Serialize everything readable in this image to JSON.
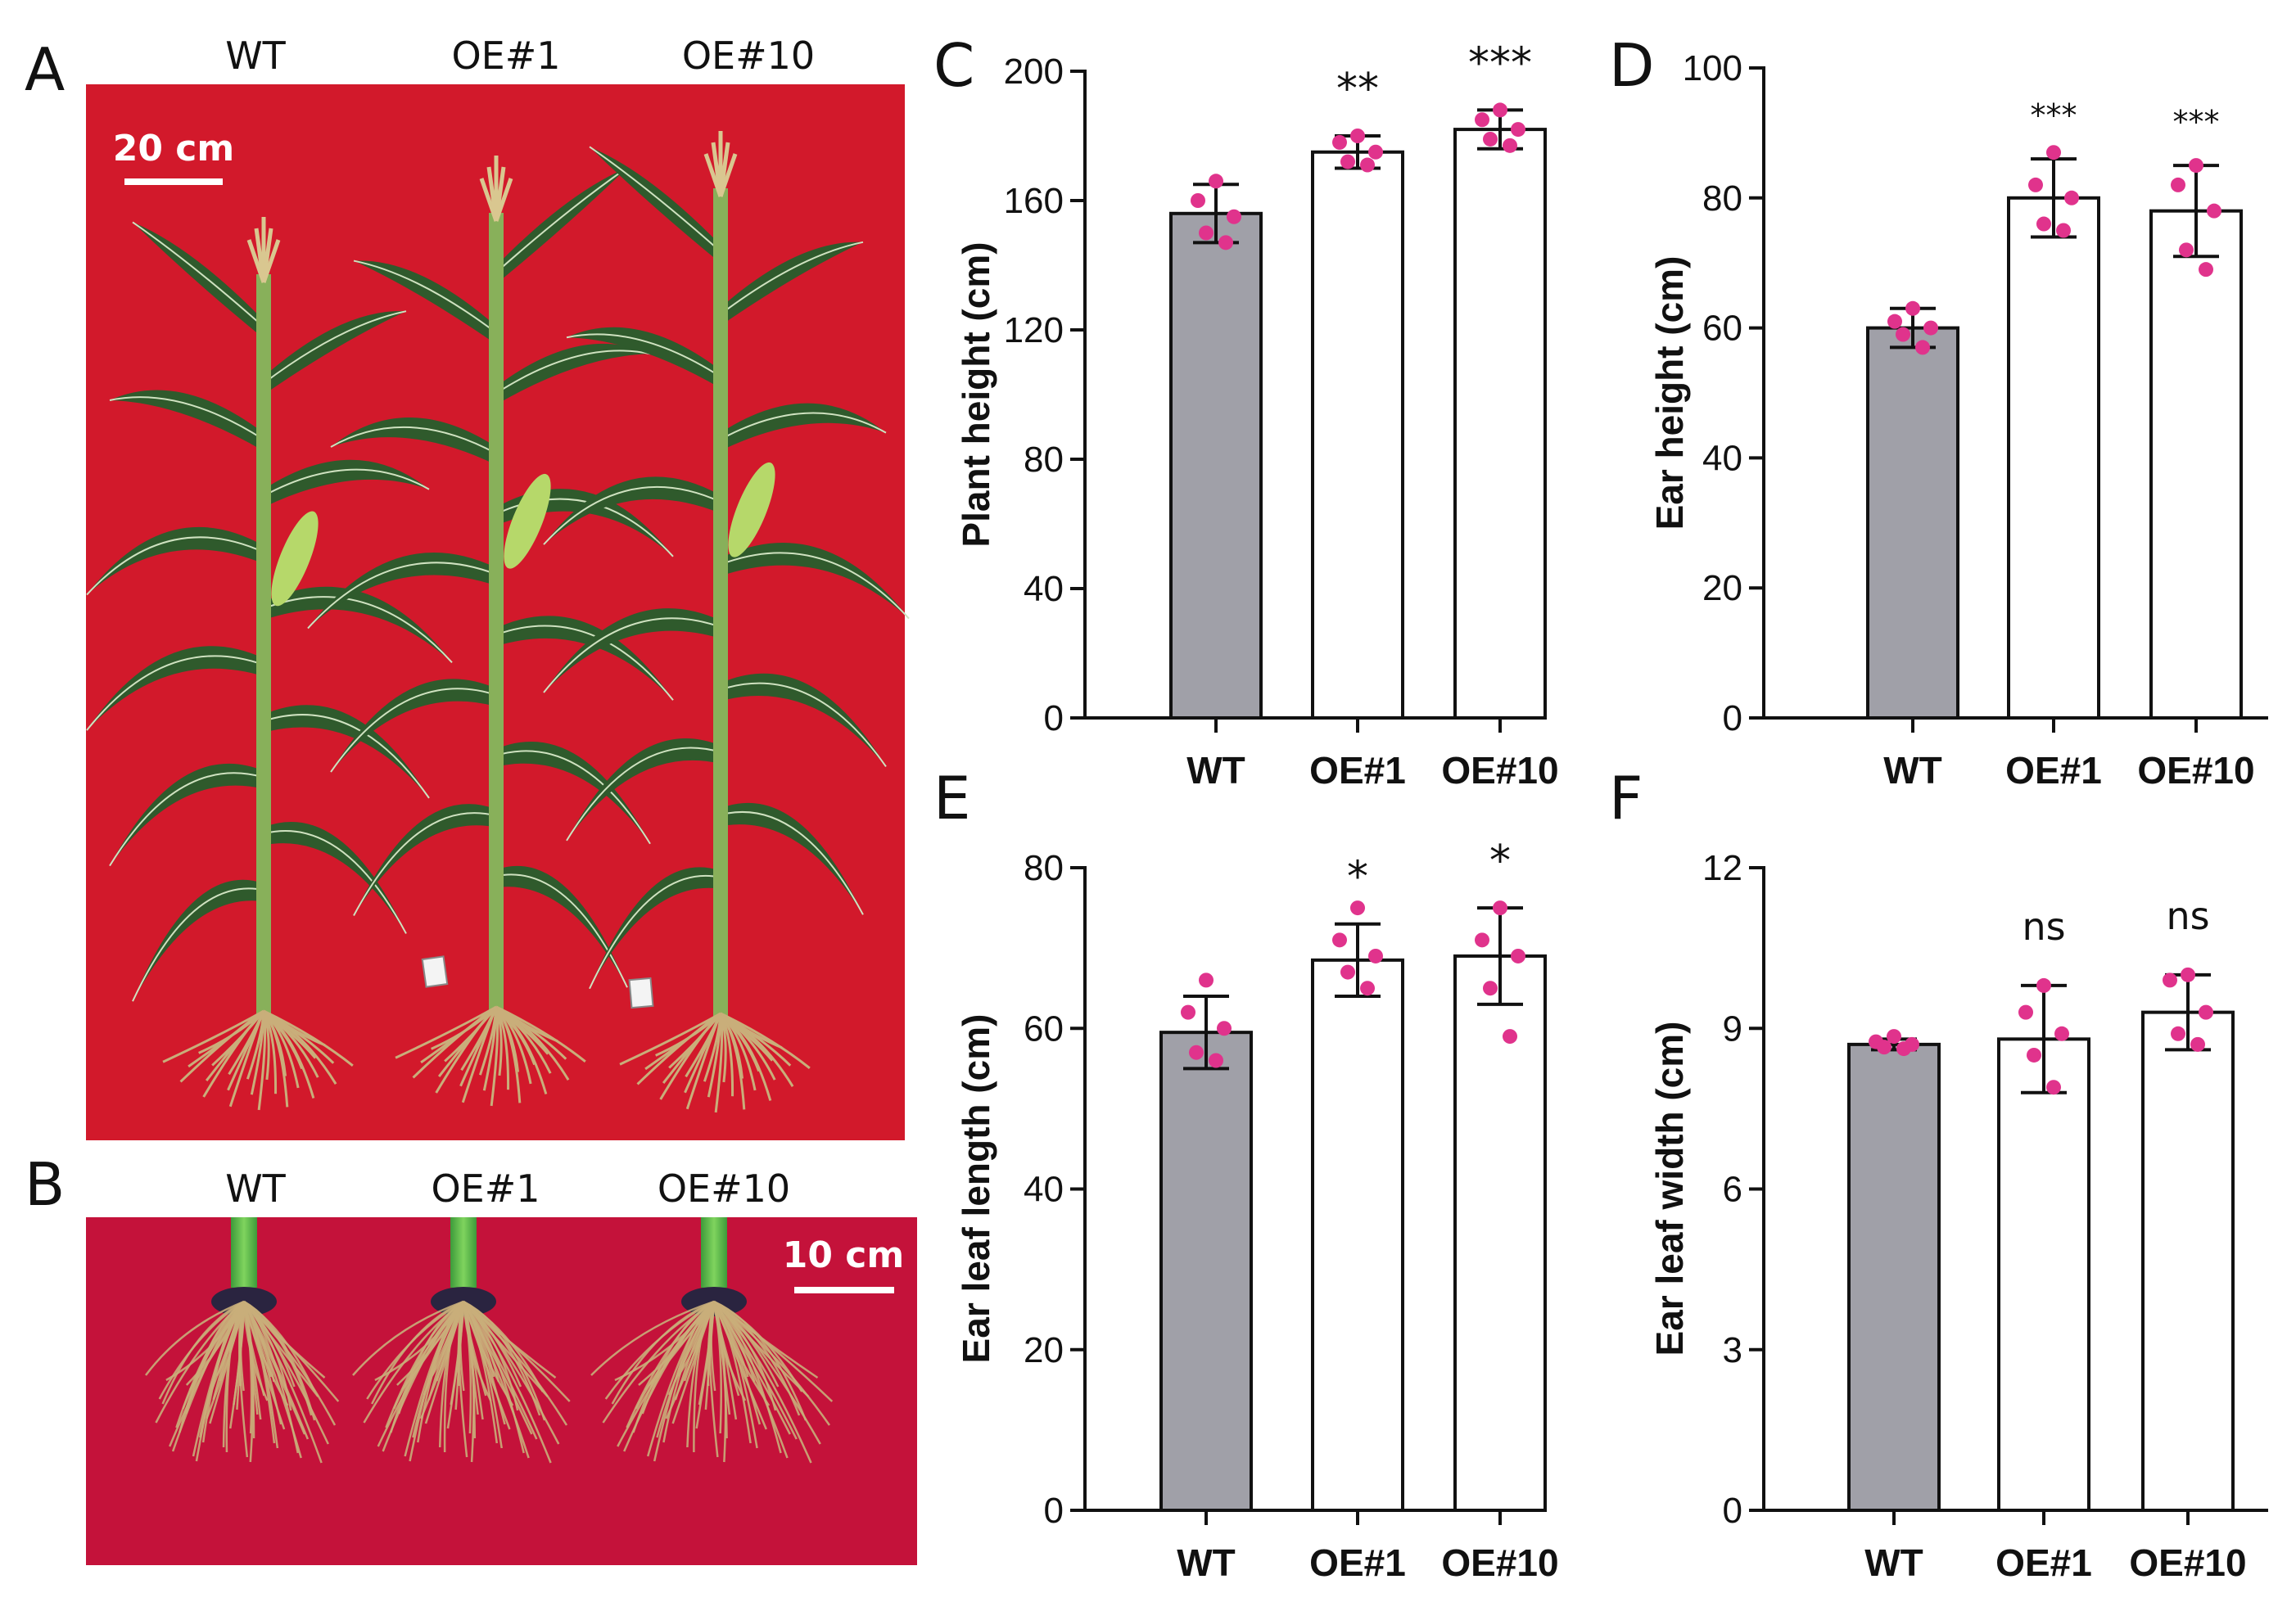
{
  "colors": {
    "photo_a_background": "#d2192b",
    "photo_b_background": "#c4123a",
    "bar_wt": "#a0a0a8",
    "bar_oe": "#ffffff",
    "point": "#e0338c",
    "leaf": "#2f5a2c",
    "stem": "#88b05a",
    "root": "#c9ae7a"
  },
  "photo_a": {
    "panel_label": "A",
    "column_labels": [
      "WT",
      "OE#1",
      "OE#10"
    ],
    "scale_bar_label": "20 cm"
  },
  "photo_b": {
    "panel_label": "B",
    "column_labels": [
      "WT",
      "OE#1",
      "OE#10"
    ],
    "scale_bar_label": "10 cm"
  },
  "chart_data": [
    {
      "panel_label": "C",
      "type": "bar",
      "categories": [
        "WT",
        "OE#1",
        "OE#10"
      ],
      "values": [
        156,
        175,
        182
      ],
      "error": [
        9,
        5,
        6
      ],
      "points": [
        [
          166,
          160,
          155,
          150,
          147
        ],
        [
          180,
          178,
          175,
          172,
          171
        ],
        [
          188,
          185,
          182,
          179,
          177
        ]
      ],
      "significance": [
        "",
        "**",
        "***"
      ],
      "ylabel": "Plant height (cm)",
      "ylim": [
        0,
        200
      ],
      "yticks": [
        0,
        40,
        80,
        120,
        160,
        200
      ],
      "ytick_labels": [
        "0",
        "40",
        "80",
        "120",
        "160",
        "200"
      ]
    },
    {
      "panel_label": "D",
      "type": "bar",
      "categories": [
        "WT",
        "OE#1",
        "OE#10"
      ],
      "values": [
        60,
        80,
        78
      ],
      "error": [
        3,
        6,
        7
      ],
      "points": [
        [
          63,
          61,
          60,
          59,
          57
        ],
        [
          87,
          82,
          80,
          76,
          75
        ],
        [
          85,
          82,
          78,
          72,
          69
        ]
      ],
      "significance": [
        "",
        "***",
        "***"
      ],
      "ylabel": "Ear height (cm)",
      "ylim": [
        0,
        100
      ],
      "yticks": [
        0,
        20,
        40,
        60,
        80,
        100
      ],
      "ytick_labels": [
        "0",
        "20",
        "40",
        "60",
        "80",
        "100"
      ]
    },
    {
      "panel_label": "E",
      "type": "bar",
      "categories": [
        "WT",
        "OE#1",
        "OE#10"
      ],
      "values": [
        59.5,
        68.5,
        69
      ],
      "error": [
        4.5,
        4.5,
        6
      ],
      "points": [
        [
          66,
          62,
          60,
          57,
          56
        ],
        [
          75,
          71,
          69,
          67,
          65
        ],
        [
          75,
          71,
          69,
          65,
          59
        ]
      ],
      "significance": [
        "",
        "*",
        "*"
      ],
      "ylabel": "Ear leaf length (cm)",
      "ylim": [
        0,
        80
      ],
      "yticks": [
        0,
        20,
        40,
        60,
        80
      ],
      "ytick_labels": [
        "0",
        "20",
        "40",
        "60",
        "80"
      ]
    },
    {
      "panel_label": "F",
      "type": "bar",
      "categories": [
        "WT",
        "OE#1",
        "OE#10"
      ],
      "values": [
        8.7,
        8.8,
        9.3
      ],
      "error": [
        0.1,
        1.0,
        0.7
      ],
      "points": [
        [
          8.85,
          8.75,
          8.7,
          8.65,
          8.62
        ],
        [
          9.8,
          9.3,
          8.9,
          8.5,
          7.9
        ],
        [
          10.0,
          9.9,
          9.3,
          8.9,
          8.7
        ]
      ],
      "significance": [
        "",
        "ns",
        "ns"
      ],
      "ylabel": "Ear leaf width (cm)",
      "ylim": [
        0,
        12
      ],
      "yticks": [
        0,
        3,
        6,
        9,
        12
      ],
      "ytick_labels": [
        "0",
        "3",
        "6",
        "9",
        "12"
      ]
    }
  ]
}
